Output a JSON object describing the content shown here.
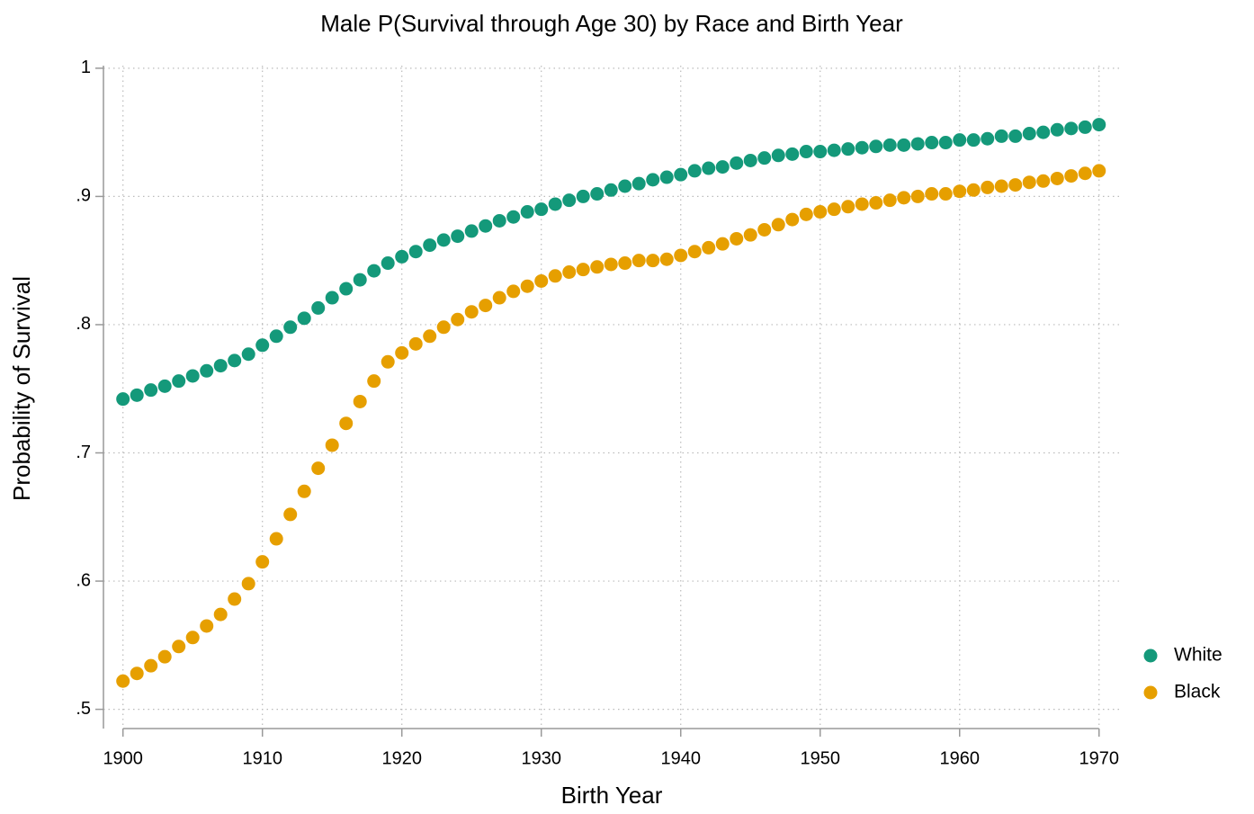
{
  "chart_data": {
    "type": "scatter",
    "title": "Male P(Survival through Age 30) by Race and Birth Year",
    "x_label": "Birth Year",
    "y_label": "Probability of Survival",
    "x": [
      1900,
      1901,
      1902,
      1903,
      1904,
      1905,
      1906,
      1907,
      1908,
      1909,
      1910,
      1911,
      1912,
      1913,
      1914,
      1915,
      1916,
      1917,
      1918,
      1919,
      1920,
      1921,
      1922,
      1923,
      1924,
      1925,
      1926,
      1927,
      1928,
      1929,
      1930,
      1931,
      1932,
      1933,
      1934,
      1935,
      1936,
      1937,
      1938,
      1939,
      1940,
      1941,
      1942,
      1943,
      1944,
      1945,
      1946,
      1947,
      1948,
      1949,
      1950,
      1951,
      1952,
      1953,
      1954,
      1955,
      1956,
      1957,
      1958,
      1959,
      1960,
      1961,
      1962,
      1963,
      1964,
      1965,
      1966,
      1967,
      1968,
      1969,
      1970
    ],
    "series": [
      {
        "name": "White",
        "color": "#14997a",
        "values": [
          0.742,
          0.745,
          0.749,
          0.752,
          0.756,
          0.76,
          0.764,
          0.768,
          0.772,
          0.777,
          0.784,
          0.791,
          0.798,
          0.805,
          0.813,
          0.821,
          0.828,
          0.835,
          0.842,
          0.848,
          0.853,
          0.857,
          0.862,
          0.866,
          0.869,
          0.873,
          0.877,
          0.881,
          0.884,
          0.888,
          0.89,
          0.894,
          0.897,
          0.9,
          0.902,
          0.905,
          0.908,
          0.91,
          0.913,
          0.915,
          0.917,
          0.92,
          0.922,
          0.923,
          0.926,
          0.928,
          0.93,
          0.932,
          0.933,
          0.935,
          0.935,
          0.936,
          0.937,
          0.938,
          0.939,
          0.94,
          0.94,
          0.941,
          0.942,
          0.942,
          0.944,
          0.944,
          0.945,
          0.947,
          0.947,
          0.949,
          0.95,
          0.952,
          0.953,
          0.954,
          0.956
        ]
      },
      {
        "name": "Black",
        "color": "#e69f00",
        "values": [
          0.522,
          0.528,
          0.534,
          0.541,
          0.549,
          0.556,
          0.565,
          0.574,
          0.586,
          0.598,
          0.615,
          0.633,
          0.652,
          0.67,
          0.688,
          0.706,
          0.723,
          0.74,
          0.756,
          0.771,
          0.778,
          0.785,
          0.791,
          0.798,
          0.804,
          0.81,
          0.815,
          0.821,
          0.826,
          0.83,
          0.834,
          0.838,
          0.841,
          0.843,
          0.845,
          0.847,
          0.848,
          0.85,
          0.85,
          0.851,
          0.854,
          0.857,
          0.86,
          0.863,
          0.867,
          0.87,
          0.874,
          0.878,
          0.882,
          0.886,
          0.888,
          0.89,
          0.892,
          0.894,
          0.895,
          0.897,
          0.899,
          0.9,
          0.902,
          0.902,
          0.904,
          0.905,
          0.907,
          0.908,
          0.909,
          0.911,
          0.912,
          0.914,
          0.916,
          0.918,
          0.92
        ]
      }
    ],
    "xlim": [
      1898.6,
      1971.5
    ],
    "xticks": [
      1900,
      1910,
      1920,
      1930,
      1940,
      1950,
      1960,
      1970
    ],
    "ylim": [
      0.485,
      1.002
    ],
    "yticks": [
      {
        "value": 0.5,
        "label": ".5"
      },
      {
        "value": 0.6,
        "label": ".6"
      },
      {
        "value": 0.7,
        "label": ".7"
      },
      {
        "value": 0.8,
        "label": ".8"
      },
      {
        "value": 0.9,
        "label": ".9"
      },
      1
    ],
    "grid": true,
    "legend": "right"
  }
}
